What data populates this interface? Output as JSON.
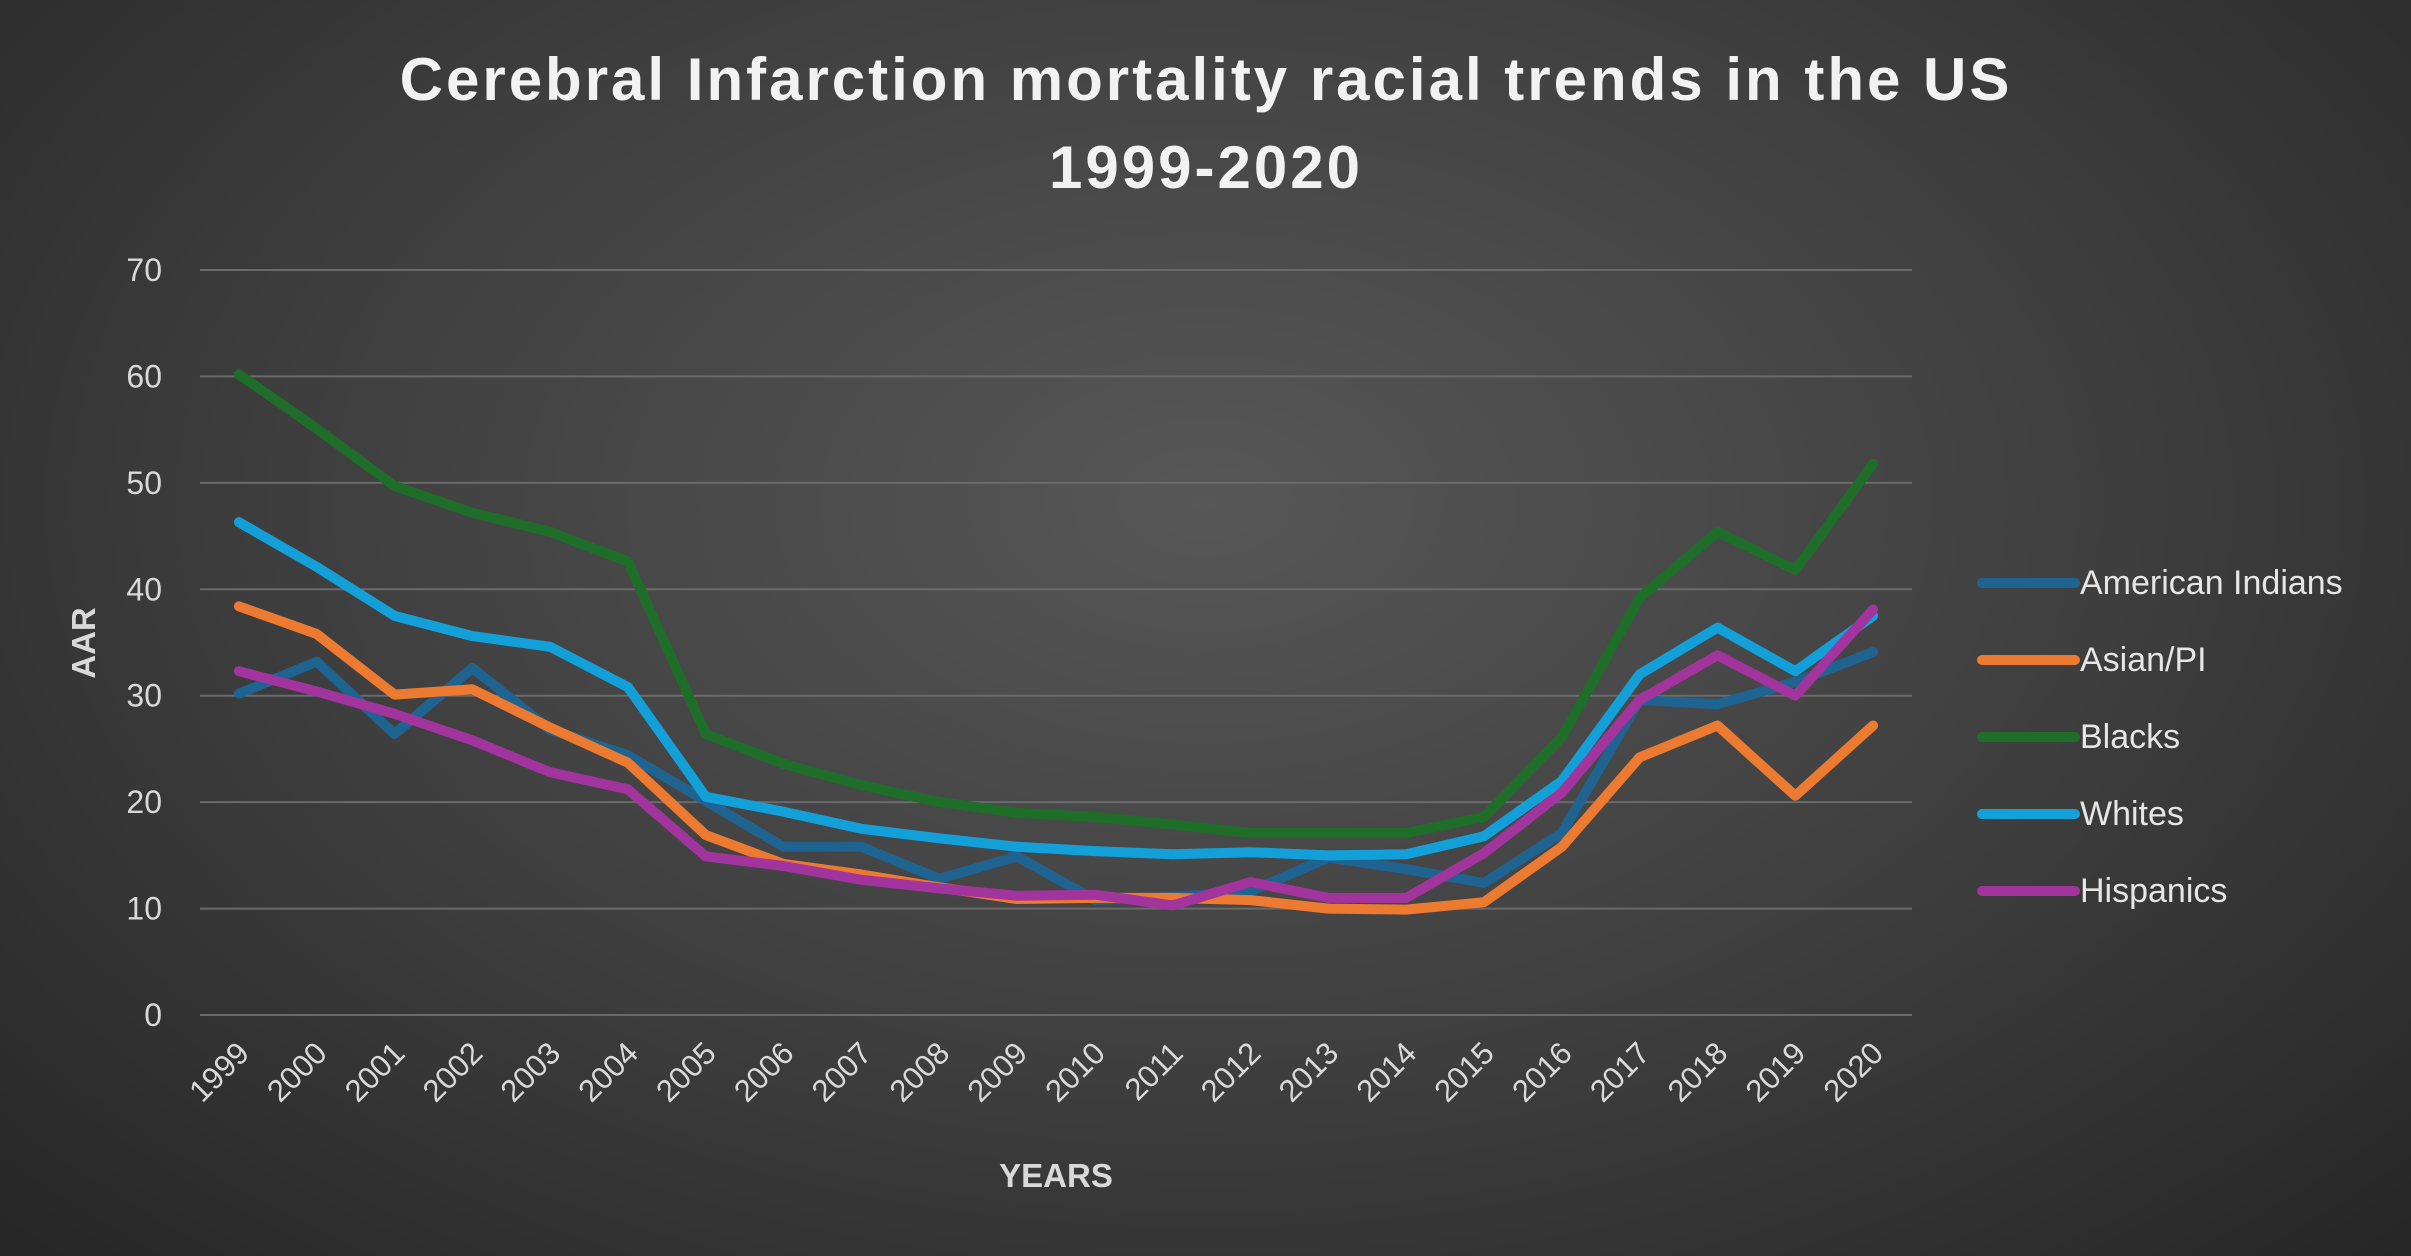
{
  "chart_data": {
    "type": "line",
    "title_lines": [
      "Cerebral Infarction mortality racial trends in the US",
      "1999-2020"
    ],
    "xlabel": "YEARS",
    "ylabel": "AAR",
    "ylim": [
      0,
      70
    ],
    "yticks": [
      0,
      10,
      20,
      30,
      40,
      50,
      60,
      70
    ],
    "grid": true,
    "legend_position": "right",
    "categories": [
      "1999",
      "2000",
      "2001",
      "2002",
      "2003",
      "2004",
      "2005",
      "2006",
      "2007",
      "2008",
      "2009",
      "2010",
      "2011",
      "2012",
      "2013",
      "2014",
      "2015",
      "2016",
      "2017",
      "2018",
      "2019",
      "2020"
    ],
    "series": [
      {
        "name": "American Indians",
        "color": "#1F6391",
        "values": [
          30.2,
          33.2,
          26.4,
          32.6,
          26.8,
          24.4,
          20.1,
          15.8,
          15.8,
          12.8,
          14.9,
          10.8,
          11.1,
          11.6,
          14.8,
          13.7,
          12.4,
          17.1,
          29.6,
          29.2,
          31.3,
          34.1
        ]
      },
      {
        "name": "Asian/PI",
        "color": "#EC7A30",
        "values": [
          38.4,
          35.8,
          30.1,
          30.6,
          27.0,
          23.7,
          16.9,
          14.2,
          13.2,
          12.0,
          10.9,
          11.0,
          11.0,
          10.8,
          10.0,
          9.9,
          10.6,
          15.8,
          24.2,
          27.2,
          20.6,
          27.2
        ]
      },
      {
        "name": "Blacks",
        "color": "#1E6E2A",
        "values": [
          60.2,
          55.1,
          49.7,
          47.2,
          45.4,
          42.6,
          26.4,
          23.6,
          21.6,
          20.0,
          19.0,
          18.6,
          17.9,
          17.1,
          17.1,
          17.1,
          18.6,
          26.1,
          39.2,
          45.4,
          41.8,
          51.8
        ]
      },
      {
        "name": "Whites",
        "color": "#13A0D9",
        "values": [
          46.3,
          42.1,
          37.5,
          35.6,
          34.6,
          30.8,
          20.5,
          19.1,
          17.5,
          16.6,
          15.8,
          15.4,
          15.1,
          15.3,
          15.0,
          15.1,
          16.8,
          22.0,
          32.0,
          36.4,
          32.3,
          37.5
        ]
      },
      {
        "name": "Hispanics",
        "color": "#A2349E",
        "values": [
          32.3,
          30.4,
          28.3,
          25.8,
          22.8,
          21.2,
          14.9,
          14.0,
          12.7,
          11.9,
          11.2,
          11.3,
          10.3,
          12.5,
          11.0,
          11.0,
          15.2,
          20.9,
          29.6,
          33.8,
          30.0,
          38.1
        ]
      }
    ]
  }
}
